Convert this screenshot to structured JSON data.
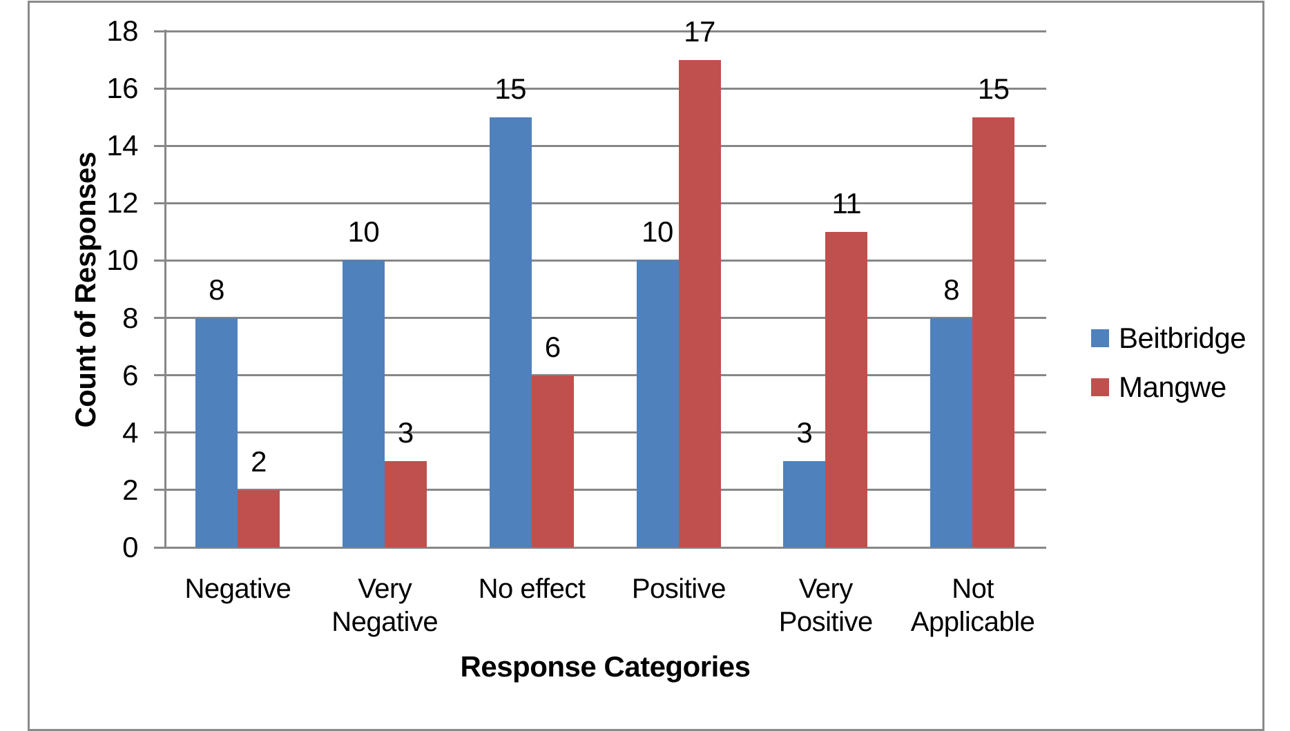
{
  "chart_data": {
    "type": "bar",
    "title": "",
    "categories": [
      "Negative",
      "Very\nNegative",
      "No effect",
      "Positive",
      "Very\nPositive",
      "Not\nApplicable"
    ],
    "series": [
      {
        "name": "Beitbridge",
        "color": "#4F81BD",
        "values": [
          8,
          10,
          15,
          10,
          3,
          8
        ]
      },
      {
        "name": "Mangwe",
        "color": "#C0504D",
        "values": [
          2,
          3,
          6,
          17,
          11,
          15
        ]
      }
    ],
    "xlabel": "Response Categories",
    "ylabel": "Count of Responses",
    "ylim": [
      0,
      18
    ],
    "yticks": [
      0,
      2,
      4,
      6,
      8,
      10,
      12,
      14,
      16,
      18
    ],
    "grid": true,
    "legend_position": "right",
    "data_labels": true,
    "colors": {
      "gridline": "#878787",
      "frame_border": "#8a8a8a",
      "text": "#000000",
      "background": "#ffffff"
    }
  }
}
